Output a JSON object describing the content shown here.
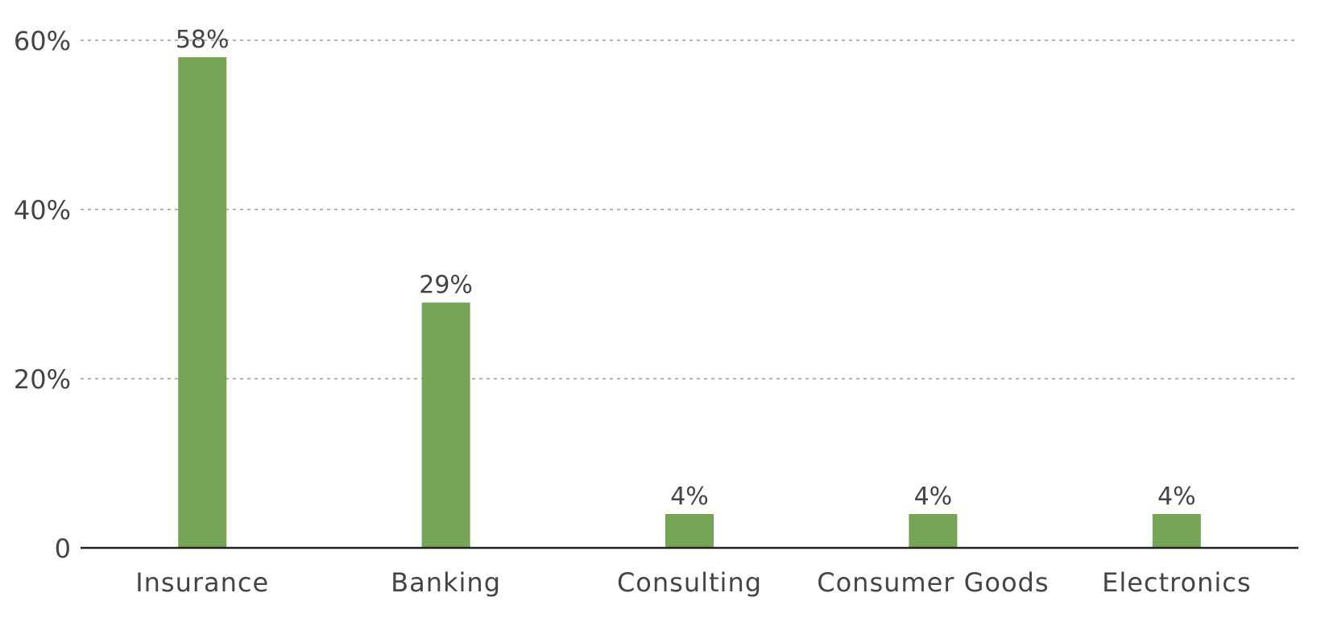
{
  "chart_data": {
    "type": "bar",
    "categories": [
      "Insurance",
      "Banking",
      "Consulting",
      "Consumer Goods",
      "Electronics"
    ],
    "values": [
      58,
      29,
      4,
      4,
      4
    ],
    "data_labels": [
      "58%",
      "29%",
      "4%",
      "4%",
      "4%"
    ],
    "y_ticks": [
      {
        "value": 0,
        "label": "0"
      },
      {
        "value": 20,
        "label": "20%"
      },
      {
        "value": 40,
        "label": "40%"
      },
      {
        "value": 60,
        "label": "60%"
      }
    ],
    "ylim": [
      0,
      60
    ],
    "grid": true,
    "bar_color": "#76a457"
  }
}
